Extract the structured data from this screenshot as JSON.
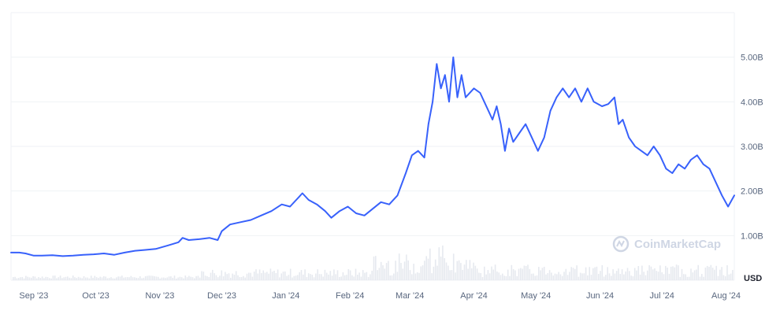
{
  "watermark": "CoinMarketCap",
  "currency_label": "USD",
  "colors": {
    "line": "#3861fb",
    "grid": "#eff2f5",
    "volume": "#e6e9ef",
    "tick": "#58667e"
  },
  "chart_data": {
    "type": "line",
    "x_axis": {
      "labels": [
        "Sep '23",
        "Oct '23",
        "Nov '23",
        "Dec '23",
        "Jan '24",
        "Feb '24",
        "Mar '24",
        "Apr '24",
        "May '24",
        "Jun '24",
        "Jul '24",
        "Aug '24"
      ]
    },
    "y_axis": {
      "position": "right",
      "ticks": [
        1000000000,
        2000000000,
        3000000000,
        4000000000,
        5000000000
      ],
      "tick_labels": [
        "1.00B",
        "2.00B",
        "3.00B",
        "4.00B",
        "5.00B"
      ],
      "range": [
        0,
        6000000000
      ]
    },
    "grid": true,
    "series": [
      {
        "values": [
          [
            "2023-08-21",
            0.62
          ],
          [
            "2023-08-25",
            0.62
          ],
          [
            "2023-08-28",
            0.6
          ],
          [
            "2023-09-01",
            0.55
          ],
          [
            "2023-09-05",
            0.55
          ],
          [
            "2023-09-10",
            0.56
          ],
          [
            "2023-09-15",
            0.54
          ],
          [
            "2023-09-20",
            0.55
          ],
          [
            "2023-09-25",
            0.57
          ],
          [
            "2023-09-30",
            0.58
          ],
          [
            "2023-10-05",
            0.6
          ],
          [
            "2023-10-10",
            0.57
          ],
          [
            "2023-10-15",
            0.62
          ],
          [
            "2023-10-20",
            0.66
          ],
          [
            "2023-10-25",
            0.68
          ],
          [
            "2023-10-30",
            0.7
          ],
          [
            "2023-11-05",
            0.78
          ],
          [
            "2023-11-10",
            0.85
          ],
          [
            "2023-11-12",
            0.95
          ],
          [
            "2023-11-15",
            0.9
          ],
          [
            "2023-11-20",
            0.92
          ],
          [
            "2023-11-25",
            0.95
          ],
          [
            "2023-11-29",
            0.9
          ],
          [
            "2023-12-01",
            1.1
          ],
          [
            "2023-12-05",
            1.25
          ],
          [
            "2023-12-10",
            1.3
          ],
          [
            "2023-12-15",
            1.35
          ],
          [
            "2023-12-20",
            1.45
          ],
          [
            "2023-12-25",
            1.55
          ],
          [
            "2023-12-30",
            1.7
          ],
          [
            "2024-01-03",
            1.65
          ],
          [
            "2024-01-06",
            1.8
          ],
          [
            "2024-01-09",
            1.95
          ],
          [
            "2024-01-12",
            1.8
          ],
          [
            "2024-01-16",
            1.7
          ],
          [
            "2024-01-20",
            1.55
          ],
          [
            "2024-01-23",
            1.4
          ],
          [
            "2024-01-27",
            1.55
          ],
          [
            "2024-01-31",
            1.65
          ],
          [
            "2024-02-04",
            1.5
          ],
          [
            "2024-02-08",
            1.45
          ],
          [
            "2024-02-12",
            1.6
          ],
          [
            "2024-02-16",
            1.75
          ],
          [
            "2024-02-20",
            1.7
          ],
          [
            "2024-02-24",
            1.9
          ],
          [
            "2024-02-28",
            2.4
          ],
          [
            "2024-03-02",
            2.8
          ],
          [
            "2024-03-05",
            2.9
          ],
          [
            "2024-03-08",
            2.75
          ],
          [
            "2024-03-10",
            3.5
          ],
          [
            "2024-03-12",
            4.0
          ],
          [
            "2024-03-14",
            4.85
          ],
          [
            "2024-03-16",
            4.3
          ],
          [
            "2024-03-18",
            4.6
          ],
          [
            "2024-03-20",
            4.0
          ],
          [
            "2024-03-22",
            5.0
          ],
          [
            "2024-03-24",
            4.1
          ],
          [
            "2024-03-26",
            4.6
          ],
          [
            "2024-03-28",
            4.1
          ],
          [
            "2024-04-01",
            4.3
          ],
          [
            "2024-04-04",
            4.2
          ],
          [
            "2024-04-08",
            3.8
          ],
          [
            "2024-04-10",
            3.6
          ],
          [
            "2024-04-12",
            3.9
          ],
          [
            "2024-04-14",
            3.5
          ],
          [
            "2024-04-16",
            2.9
          ],
          [
            "2024-04-18",
            3.4
          ],
          [
            "2024-04-20",
            3.1
          ],
          [
            "2024-04-23",
            3.3
          ],
          [
            "2024-04-26",
            3.5
          ],
          [
            "2024-04-29",
            3.2
          ],
          [
            "2024-05-02",
            2.9
          ],
          [
            "2024-05-05",
            3.2
          ],
          [
            "2024-05-08",
            3.8
          ],
          [
            "2024-05-11",
            4.1
          ],
          [
            "2024-05-14",
            4.3
          ],
          [
            "2024-05-17",
            4.1
          ],
          [
            "2024-05-20",
            4.3
          ],
          [
            "2024-05-23",
            4.0
          ],
          [
            "2024-05-26",
            4.3
          ],
          [
            "2024-05-29",
            4.0
          ],
          [
            "2024-06-02",
            3.9
          ],
          [
            "2024-06-05",
            3.95
          ],
          [
            "2024-06-08",
            4.1
          ],
          [
            "2024-06-10",
            3.5
          ],
          [
            "2024-06-12",
            3.6
          ],
          [
            "2024-06-15",
            3.2
          ],
          [
            "2024-06-18",
            3.0
          ],
          [
            "2024-06-21",
            2.9
          ],
          [
            "2024-06-24",
            2.8
          ],
          [
            "2024-06-27",
            3.0
          ],
          [
            "2024-06-30",
            2.8
          ],
          [
            "2024-07-03",
            2.5
          ],
          [
            "2024-07-06",
            2.4
          ],
          [
            "2024-07-09",
            2.6
          ],
          [
            "2024-07-12",
            2.5
          ],
          [
            "2024-07-15",
            2.7
          ],
          [
            "2024-07-18",
            2.8
          ],
          [
            "2024-07-21",
            2.6
          ],
          [
            "2024-07-24",
            2.5
          ],
          [
            "2024-07-27",
            2.2
          ],
          [
            "2024-07-30",
            1.9
          ],
          [
            "2024-08-02",
            1.65
          ],
          [
            "2024-08-05",
            1.9
          ]
        ]
      }
    ]
  }
}
